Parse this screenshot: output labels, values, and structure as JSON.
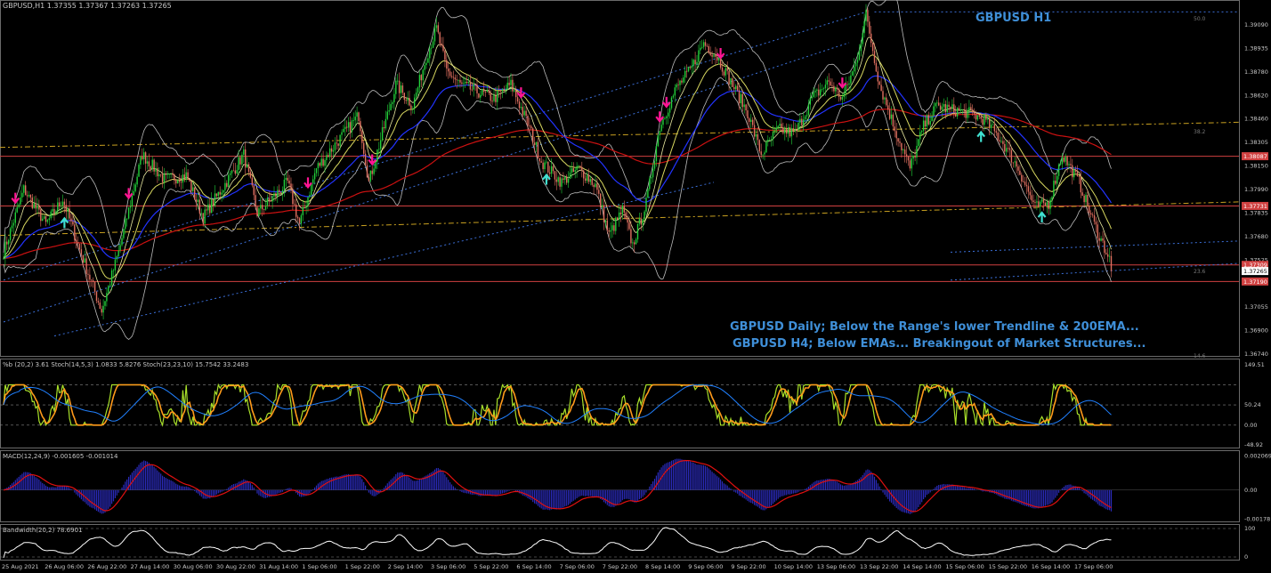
{
  "colors": {
    "background": "#000000",
    "frame": "#6a6a6a",
    "bull_candle": "#22d03a",
    "bear_candle": "#e07060",
    "ema_blue": "#2233ff",
    "ema_red": "#cc1111",
    "ema_yellow": "#d8d860",
    "bollinger": "#bbbbbb",
    "trend_blue": "#3b6fd8",
    "hline_red": "#d04040",
    "hline_gold": "#c8a020",
    "arrow_down": "#ff1493",
    "arrow_up": "#40e0d0",
    "annotation": "#3f8fd8",
    "stoch_green": "#a8e02a",
    "stoch_orange": "#ff9a1a",
    "stoch_blue": "#2080ff",
    "macd_hist": "#2a2ab8",
    "macd_signal": "#e01010",
    "bandwidth": "#ffffff"
  },
  "header": {
    "symbol_line": "GBPUSD,H1  1.37355 1.37367 1.37263 1.37265",
    "title": "GBPUSD H1"
  },
  "annotations": {
    "line1": "GBPUSD Daily; Below the Range's lower Trendline & 200EMA...",
    "line2": "GBPUSD H4; Below EMAs... Breakingout of Market Structures..."
  },
  "fib_labels": {
    "top": "50.0",
    "mid": "38.2",
    "low": "23.6",
    "bottom": "14.6"
  },
  "price_axis": {
    "ticks": [
      "1.39090",
      "1.38935",
      "1.38780",
      "1.38620",
      "1.38460",
      "1.38305",
      "1.38150",
      "1.37990",
      "1.37835",
      "1.37680",
      "1.37525",
      "1.37365",
      "1.37055",
      "1.36900",
      "1.36740"
    ],
    "badges": [
      {
        "text": "1.38087",
        "color": "#d04040",
        "price": 1.38087
      },
      {
        "text": "1.37731",
        "color": "#d04040",
        "price": 1.37731
      },
      {
        "text": "1.37309",
        "color": "#d04040",
        "price": 1.37309
      },
      {
        "text": "1.37265",
        "color": "#ffffff",
        "price": 1.37265
      },
      {
        "text": "1.37190",
        "color": "#d04040",
        "price": 1.3719
      }
    ]
  },
  "panels": {
    "stoch": {
      "label": "%b (20,2) 3.61  Stoch(14,5,3) 1.0833 5.8276  Stoch(23,23,10) 15.7542 33.2483",
      "ticks": [
        "149.51",
        "50.24",
        "0.00",
        "-48.92"
      ]
    },
    "macd": {
      "label": "MACD(12,24,9) -0.001605 -0.001014",
      "ticks": [
        "0.002069",
        "0.00",
        "-0.00178"
      ]
    },
    "bandwidth": {
      "label": "Bandwidth(20,2) 78.6901",
      "ticks": [
        "100",
        "0"
      ]
    }
  },
  "time_axis": [
    "25 Aug 2021",
    "26 Aug 06:00",
    "26 Aug 22:00",
    "27 Aug 14:00",
    "30 Aug 06:00",
    "30 Aug 22:00",
    "31 Aug 14:00",
    "1 Sep 06:00",
    "1 Sep 22:00",
    "2 Sep 14:00",
    "3 Sep 06:00",
    "5 Sep 22:00",
    "6 Sep 14:00",
    "7 Sep 06:00",
    "7 Sep 22:00",
    "8 Sep 14:00",
    "9 Sep 06:00",
    "9 Sep 22:00",
    "10 Sep 14:00",
    "13 Sep 06:00",
    "13 Sep 22:00",
    "14 Sep 14:00",
    "15 Sep 06:00",
    "15 Sep 22:00",
    "16 Sep 14:00",
    "17 Sep 06:00"
  ],
  "chart_data": {
    "type": "candlestick",
    "symbol": "GBPUSD",
    "timeframe": "H1",
    "ylim": [
      1.3667,
      1.3918
    ],
    "price_path_points": [
      [
        0,
        1.374
      ],
      [
        12,
        1.3785
      ],
      [
        25,
        1.376
      ],
      [
        35,
        1.3778
      ],
      [
        45,
        1.3742
      ],
      [
        58,
        1.3698
      ],
      [
        68,
        1.374
      ],
      [
        82,
        1.381
      ],
      [
        95,
        1.3792
      ],
      [
        108,
        1.3795
      ],
      [
        118,
        1.3765
      ],
      [
        130,
        1.3787
      ],
      [
        142,
        1.381
      ],
      [
        150,
        1.3768
      ],
      [
        160,
        1.378
      ],
      [
        168,
        1.379
      ],
      [
        175,
        1.376
      ],
      [
        185,
        1.38
      ],
      [
        198,
        1.382
      ],
      [
        210,
        1.3838
      ],
      [
        216,
        1.379
      ],
      [
        224,
        1.3825
      ],
      [
        232,
        1.386
      ],
      [
        242,
        1.3845
      ],
      [
        250,
        1.388
      ],
      [
        256,
        1.39
      ],
      [
        262,
        1.387
      ],
      [
        270,
        1.386
      ],
      [
        280,
        1.3855
      ],
      [
        290,
        1.385
      ],
      [
        300,
        1.386
      ],
      [
        310,
        1.3832
      ],
      [
        318,
        1.3805
      ],
      [
        330,
        1.379
      ],
      [
        340,
        1.38
      ],
      [
        350,
        1.3788
      ],
      [
        358,
        1.3752
      ],
      [
        366,
        1.377
      ],
      [
        372,
        1.3745
      ],
      [
        380,
        1.3775
      ],
      [
        388,
        1.383
      ],
      [
        398,
        1.3858
      ],
      [
        406,
        1.387
      ],
      [
        414,
        1.389
      ],
      [
        422,
        1.388
      ],
      [
        430,
        1.3862
      ],
      [
        440,
        1.384
      ],
      [
        448,
        1.381
      ],
      [
        458,
        1.3828
      ],
      [
        468,
        1.3825
      ],
      [
        478,
        1.385
      ],
      [
        488,
        1.3862
      ],
      [
        496,
        1.385
      ],
      [
        504,
        1.3875
      ],
      [
        510,
        1.391
      ],
      [
        518,
        1.386
      ],
      [
        528,
        1.3825
      ],
      [
        536,
        1.38
      ],
      [
        544,
        1.383
      ],
      [
        552,
        1.3845
      ],
      [
        560,
        1.3842
      ],
      [
        570,
        1.384
      ],
      [
        580,
        1.3835
      ],
      [
        590,
        1.382
      ],
      [
        600,
        1.38
      ],
      [
        610,
        1.3772
      ],
      [
        618,
        1.3775
      ],
      [
        626,
        1.381
      ],
      [
        636,
        1.379
      ],
      [
        645,
        1.376
      ],
      [
        655,
        1.3732
      ]
    ],
    "trend_lines_price_space": [],
    "horizontal_levels": [
      1.38087,
      1.37731,
      1.37309,
      1.3719
    ],
    "arrows": [
      {
        "type": "down",
        "bar": 7
      },
      {
        "type": "down",
        "bar": 74
      },
      {
        "type": "down",
        "bar": 180
      },
      {
        "type": "down",
        "bar": 218
      },
      {
        "type": "down",
        "bar": 306
      },
      {
        "type": "down",
        "bar": 392
      },
      {
        "type": "down",
        "bar": 388
      },
      {
        "type": "down",
        "bar": 424
      },
      {
        "type": "down",
        "bar": 496
      },
      {
        "type": "up",
        "bar": 36
      },
      {
        "type": "up",
        "bar": 321
      },
      {
        "type": "up",
        "bar": 578
      },
      {
        "type": "up",
        "bar": 614
      }
    ]
  }
}
